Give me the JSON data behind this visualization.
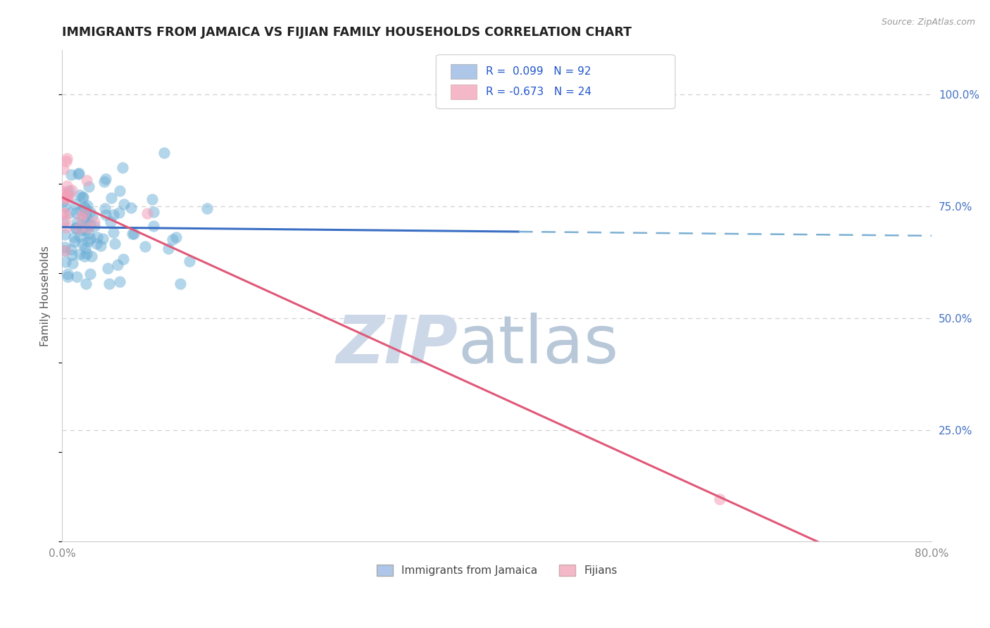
{
  "title": "IMMIGRANTS FROM JAMAICA VS FIJIAN FAMILY HOUSEHOLDS CORRELATION CHART",
  "source": "Source: ZipAtlas.com",
  "ylabel": "Family Households",
  "x_min": 0.0,
  "x_max": 0.8,
  "y_min": 0.0,
  "y_max": 1.1,
  "legend_color1": "#aec6e8",
  "legend_color2": "#f4b8c8",
  "dot_color_jamaica": "#6baed6",
  "dot_color_fijian": "#f4a0b8",
  "trend_color_jamaica": "#3a6fc4",
  "trend_color_fijian": "#e05878",
  "dashed_line_color": "#7bafd4",
  "watermark_zip_color": "#ccd8e8",
  "watermark_atlas_color": "#b8c8d8",
  "background_color": "#ffffff"
}
